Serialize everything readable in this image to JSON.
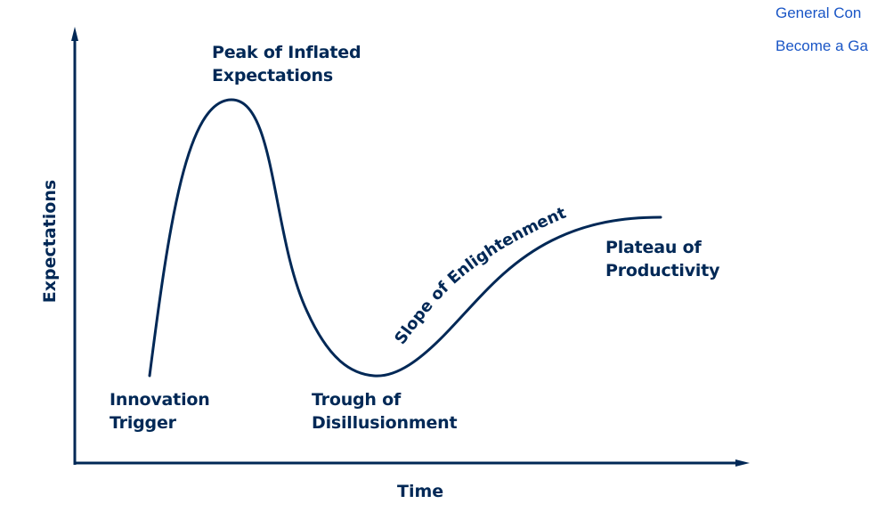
{
  "diagram": {
    "stage_labels": {
      "innovation_trigger": [
        "Innovation",
        "Trigger"
      ],
      "peak": [
        "Peak of Inflated",
        "Expectations"
      ],
      "trough": [
        "Trough of",
        "Disillusionment"
      ],
      "slope": "Slope of Enlightenment",
      "plateau": [
        "Plateau of",
        "Productivity"
      ]
    },
    "x_axis_label": "Time",
    "y_axis_label": "Expectations",
    "colors": {
      "ink": "#002856",
      "link": "#1a56c6"
    }
  },
  "side_links": [
    "General Con",
    "Become a Ga"
  ]
}
